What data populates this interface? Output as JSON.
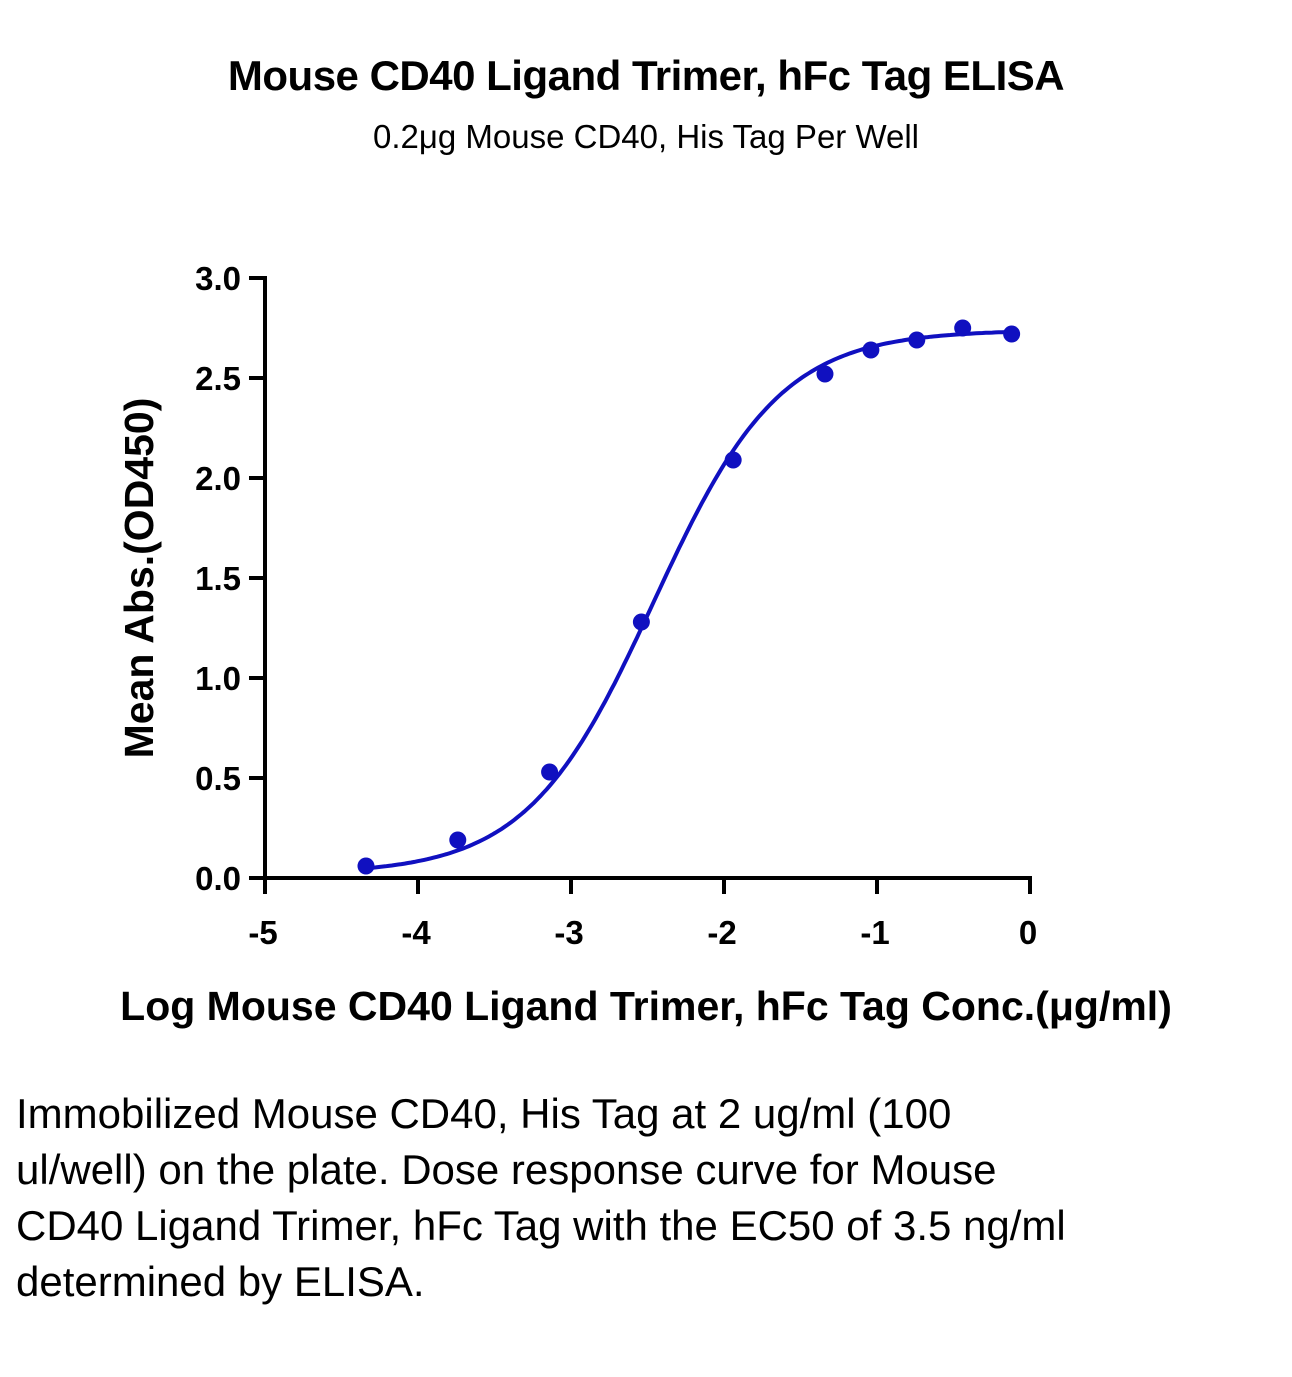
{
  "chart_data": {
    "type": "scatter",
    "title": "Mouse CD40 Ligand Trimer, hFc Tag ELISA",
    "subtitle": "0.2μg Mouse CD40, His Tag Per Well",
    "xlabel": "Log Mouse CD40 Ligand Trimer, hFc Tag Conc.(μg/ml)",
    "ylabel": "Mean Abs.(OD450)",
    "xlim": [
      -5,
      0
    ],
    "ylim": [
      0,
      3.0
    ],
    "x_ticks": [
      "-5",
      "-4",
      "-3",
      "-2",
      "-1",
      "0"
    ],
    "y_ticks": [
      "0.0",
      "0.5",
      "1.0",
      "1.5",
      "2.0",
      "2.5",
      "3.0"
    ],
    "grid": false,
    "series": [
      {
        "color": "#1010c0",
        "points": [
          {
            "x": -4.34,
            "y": 0.06
          },
          {
            "x": -3.74,
            "y": 0.19
          },
          {
            "x": -3.14,
            "y": 0.53
          },
          {
            "x": -2.54,
            "y": 1.28
          },
          {
            "x": -1.94,
            "y": 2.09
          },
          {
            "x": -1.34,
            "y": 2.52
          },
          {
            "x": -1.04,
            "y": 2.64
          },
          {
            "x": -0.74,
            "y": 2.69
          },
          {
            "x": -0.44,
            "y": 2.75
          },
          {
            "x": -0.12,
            "y": 2.72
          }
        ],
        "fit": {
          "bottom": 0.02,
          "top": 2.74,
          "log_ec50": -2.46,
          "hill": 1.05
        }
      }
    ]
  },
  "caption": "Immobilized Mouse CD40, His Tag at 2 ug/ml (100 ul/well) on the plate. Dose response curve for Mouse CD40 Ligand Trimer, hFc Tag with the EC50 of 3.5 ng/ml determined by ELISA."
}
